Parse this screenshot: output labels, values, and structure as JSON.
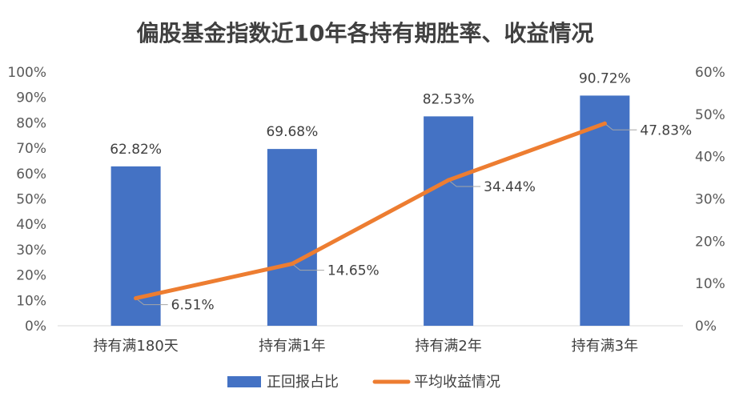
{
  "chart_data": {
    "type": "bar",
    "title": "偏股基金指数近10年各持有期胜率、收益情况",
    "categories": [
      "持有满180天",
      "持有满1年",
      "持有满2年",
      "持有满3年"
    ],
    "series": [
      {
        "name": "正回报占比",
        "type": "bar",
        "axis": "left",
        "color": "#4472C4",
        "values": [
          62.82,
          69.68,
          82.53,
          90.72
        ],
        "labels": [
          "62.82%",
          "69.68%",
          "82.53%",
          "90.72%"
        ]
      },
      {
        "name": "平均收益情况",
        "type": "line",
        "axis": "right",
        "color": "#ED7D31",
        "values": [
          6.51,
          14.65,
          34.44,
          47.83
        ],
        "labels": [
          "6.51%",
          "14.65%",
          "34.44%",
          "47.83%"
        ]
      }
    ],
    "y_left": {
      "range": [
        0,
        100
      ],
      "ticks": [
        "0%",
        "10%",
        "20%",
        "30%",
        "40%",
        "50%",
        "60%",
        "70%",
        "80%",
        "90%",
        "100%"
      ]
    },
    "y_right": {
      "range": [
        0,
        60
      ],
      "ticks": [
        "0%",
        "10%",
        "20%",
        "30%",
        "40%",
        "50%",
        "60%"
      ]
    },
    "grid": false,
    "legend_position": "bottom"
  }
}
